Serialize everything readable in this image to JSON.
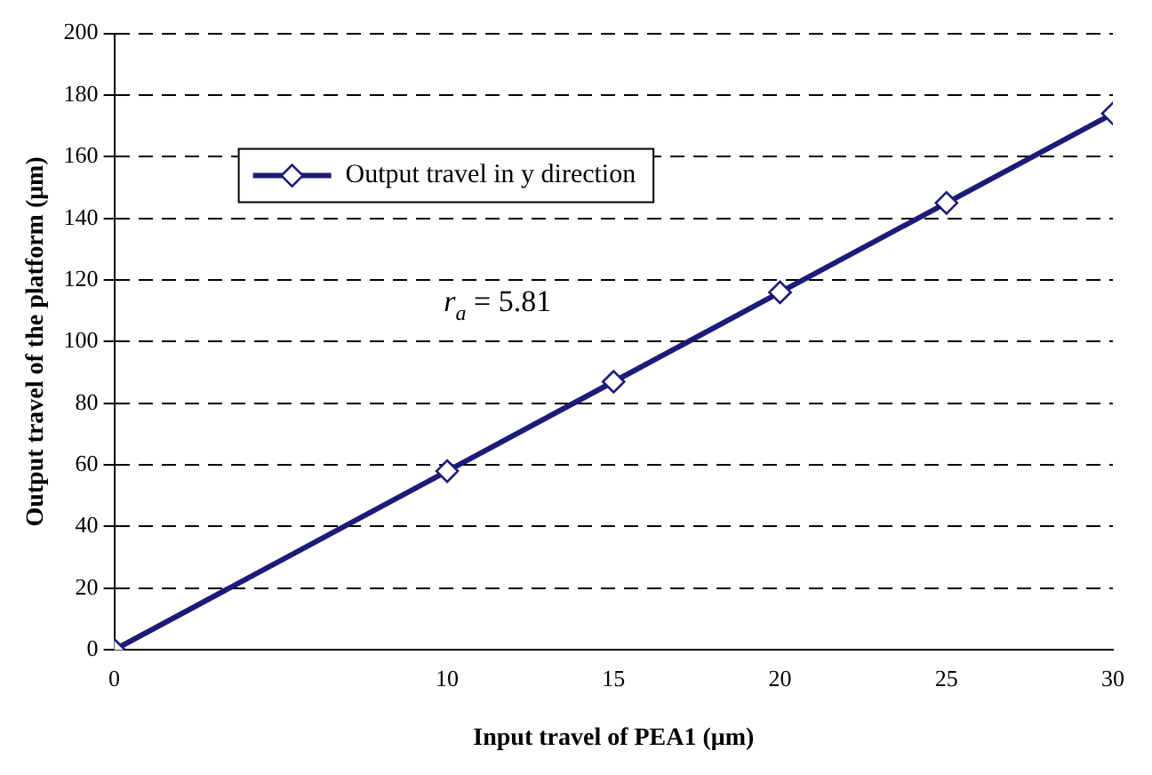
{
  "chart_data": {
    "type": "line",
    "xlabel": "Input travel of PEA1 (μm)",
    "ylabel": "Output travel of the platform (μm)",
    "x": [
      0,
      10,
      15,
      20,
      25,
      30
    ],
    "series": [
      {
        "name": "Output travel in y direction",
        "color": "#1c1c78",
        "values": [
          0,
          58,
          87,
          116,
          145,
          174
        ]
      }
    ],
    "xlim": [
      0,
      30
    ],
    "xticks": [
      0,
      10,
      15,
      20,
      25,
      30
    ],
    "ylim": [
      0,
      200
    ],
    "yticks": [
      0,
      20,
      40,
      60,
      80,
      100,
      120,
      140,
      160,
      180,
      200
    ],
    "grid": "y",
    "legend": "top left",
    "marker": "diamond",
    "line_style": "solid",
    "annotations": [
      "r$_{a}$ = 5.81"
    ]
  }
}
